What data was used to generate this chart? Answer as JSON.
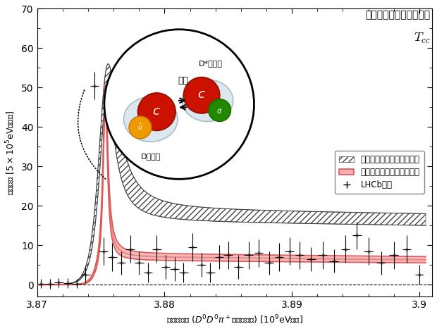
{
  "xlabel": "エネルギー ($D^0D^0\\pi^+$の不変質量) [$10^9$eV単位]",
  "ylabel": "生成頻度 [$5\\times10^5$eVあたり]",
  "xlim": [
    3.87,
    3.901
  ],
  "ylim": [
    -3,
    70
  ],
  "yticks": [
    0,
    10,
    20,
    30,
    40,
    50,
    60,
    70
  ],
  "xticks": [
    3.87,
    3.88,
    3.89,
    3.9
  ],
  "peak_x": 3.87535,
  "background_color": "#ffffff",
  "legend_entries": [
    "「ほぼ現実世界」での計算",
    "「現実世界」での近似計算",
    "LHCb実験"
  ],
  "hatch_color": "#444444",
  "red_color": "#e05555",
  "red_fill_color": "#f4b0b0",
  "title_line1": "「純粋テトラクォーク」",
  "title_line2": "$T_{cc}$",
  "label_D": "D中間子",
  "label_Dstar": "D*中間子",
  "label_force": "引力"
}
